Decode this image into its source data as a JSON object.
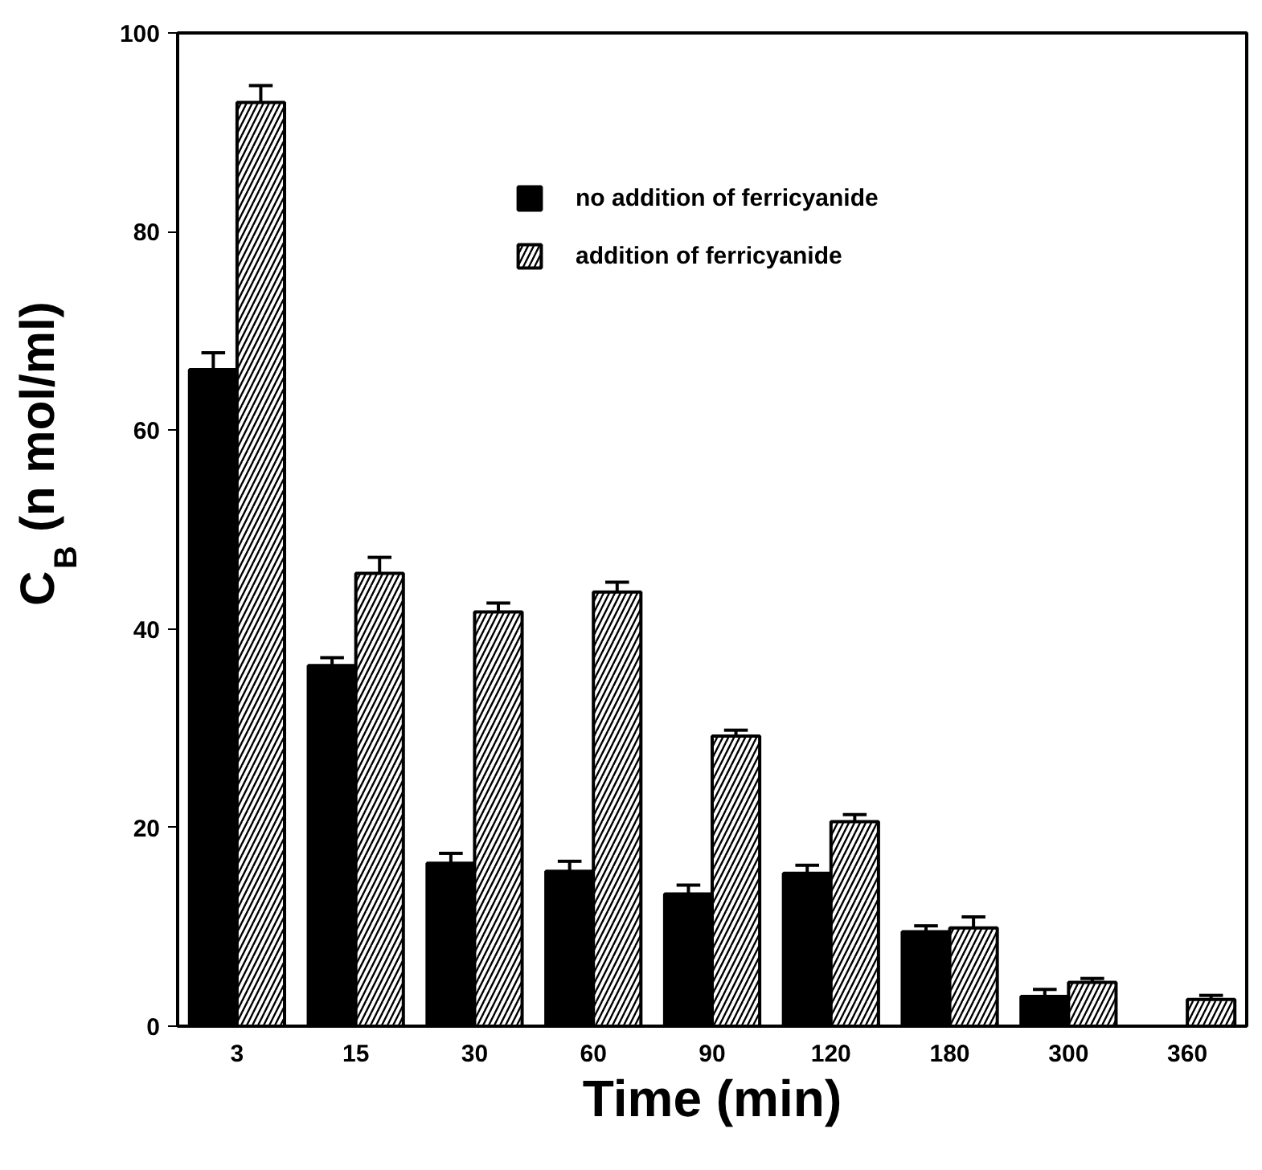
{
  "chart_data": {
    "type": "bar",
    "xlabel": "Time (min)",
    "ylabel": "C$_{B}$ (n mol/ml)",
    "categories": [
      "3",
      "15",
      "30",
      "60",
      "90",
      "120",
      "180",
      "300",
      "360"
    ],
    "series": [
      {
        "name": "no addition of ferricyanide",
        "color": "#000000",
        "values": [
          66.1,
          36.3,
          16.4,
          15.6,
          13.3,
          15.4,
          9.5,
          3.0,
          null
        ],
        "errors": [
          1.7,
          0.8,
          1.0,
          1.0,
          0.9,
          0.8,
          0.6,
          0.7,
          null
        ]
      },
      {
        "name": "addition of ferricyanide",
        "color": "#ffffff",
        "values": [
          93.0,
          45.6,
          41.7,
          43.7,
          29.2,
          20.6,
          9.9,
          4.4,
          2.7
        ],
        "errors": [
          1.7,
          1.6,
          0.9,
          1.0,
          0.6,
          0.7,
          1.1,
          0.4,
          0.4
        ]
      }
    ],
    "ylim": [
      0,
      100
    ],
    "yticks": [
      0,
      20,
      40,
      60,
      80,
      100
    ],
    "grid": false,
    "legend": "top right"
  }
}
